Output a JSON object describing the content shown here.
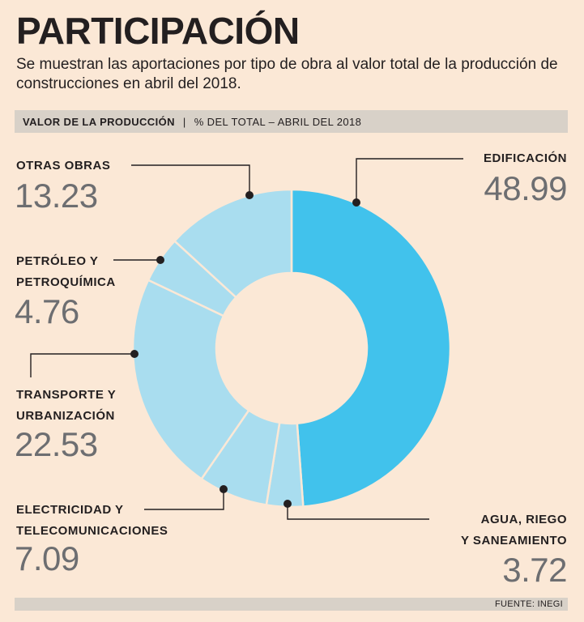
{
  "header": {
    "title": "PARTICIPACIÓN",
    "subtitle": "Se muestran las aportaciones por tipo de obra al valor total de la producción de construcciones en abril del 2018."
  },
  "band": {
    "left": "VALOR DE LA PRODUCCIÓN",
    "separator": "|",
    "right": "% DEL TOTAL – ABRIL DEL 2018"
  },
  "chart_data": {
    "type": "pie",
    "title": "VALOR DE LA PRODUCCIÓN",
    "subtitle": "% DEL TOTAL – ABRIL DEL 2018",
    "categories": [
      "EDIFICACIÓN",
      "AGUA, RIEGO Y SANEAMIENTO",
      "ELECTRICIDAD Y TELECOMUNICACIONES",
      "TRANSPORTE Y URBANIZACIÓN",
      "PETRÓLEO Y PETROQUÍMICA",
      "OTRAS OBRAS"
    ],
    "values": [
      48.99,
      3.72,
      7.09,
      22.53,
      4.76,
      13.23
    ],
    "colors": [
      "#41c2ec",
      "#a9ddef",
      "#a9ddef",
      "#a9ddef",
      "#a9ddef",
      "#a9ddef"
    ],
    "value_labels": [
      "48.99",
      "3.72",
      "7.09",
      "22.53",
      "4.76",
      "13.23"
    ],
    "label_lines": [
      [
        "EDIFICACIÓN"
      ],
      [
        "AGUA, RIEGO",
        "Y SANEAMIENTO"
      ],
      [
        "ELECTRICIDAD Y",
        "TELECOMUNICACIONES"
      ],
      [
        "TRANSPORTE Y",
        "URBANIZACIÓN"
      ],
      [
        "PETRÓLEO Y",
        "PETROQUÍMICA"
      ],
      [
        "OTRAS OBRAS"
      ]
    ],
    "donut": true
  },
  "footer": {
    "source": "FUENTE: INEGI"
  }
}
